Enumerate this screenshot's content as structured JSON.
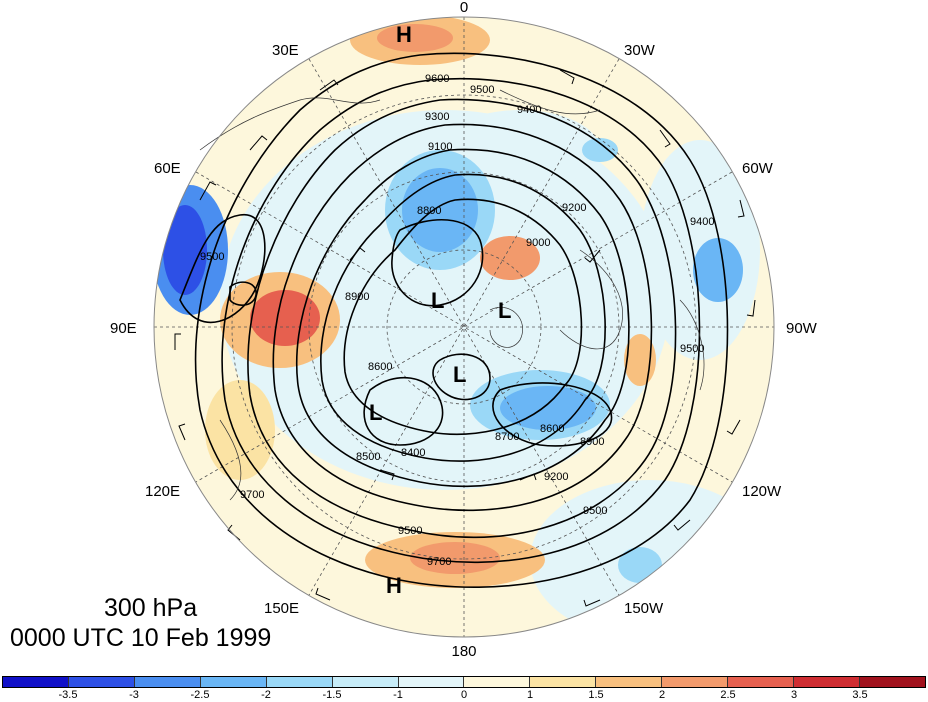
{
  "title": {
    "level": "300 hPa",
    "time": "0000 UTC 10 Feb 1999"
  },
  "longitude_labels": [
    "0",
    "30W",
    "60W",
    "90W",
    "120W",
    "150W",
    "180",
    "150E",
    "120E",
    "90E",
    "60E",
    "30E"
  ],
  "contour_labels": [
    "9600",
    "9500",
    "9400",
    "9300",
    "9200",
    "9100",
    "9000",
    "8900",
    "8800",
    "8700",
    "8600",
    "8500",
    "8400",
    "9700"
  ],
  "pressure_centers": [
    {
      "type": "H",
      "label": "H"
    },
    {
      "type": "H",
      "label": "H"
    },
    {
      "type": "L",
      "label": "L"
    },
    {
      "type": "L",
      "label": "L"
    },
    {
      "type": "L",
      "label": "L"
    },
    {
      "type": "L",
      "label": "L"
    }
  ],
  "colorbar": {
    "colors": [
      "#1010c8",
      "#2d50e6",
      "#4a8ef0",
      "#6ab6f5",
      "#9ad8f7",
      "#c7ecf8",
      "#e3f5f9",
      "#fdf7dc",
      "#fbe3a4",
      "#f8c07f",
      "#f29a6c",
      "#e6604f",
      "#cf2d32",
      "#a1121d"
    ],
    "labels": [
      "-3.5",
      "-3",
      "-2.5",
      "-2",
      "-1.5",
      "-1",
      "0",
      "1",
      "1.5",
      "2",
      "2.5",
      "3",
      "3.5"
    ]
  },
  "map": {
    "projection": "north polar stereographic",
    "coastlines": true,
    "wind_barbs": true,
    "land_color": "#fdf7dc"
  }
}
